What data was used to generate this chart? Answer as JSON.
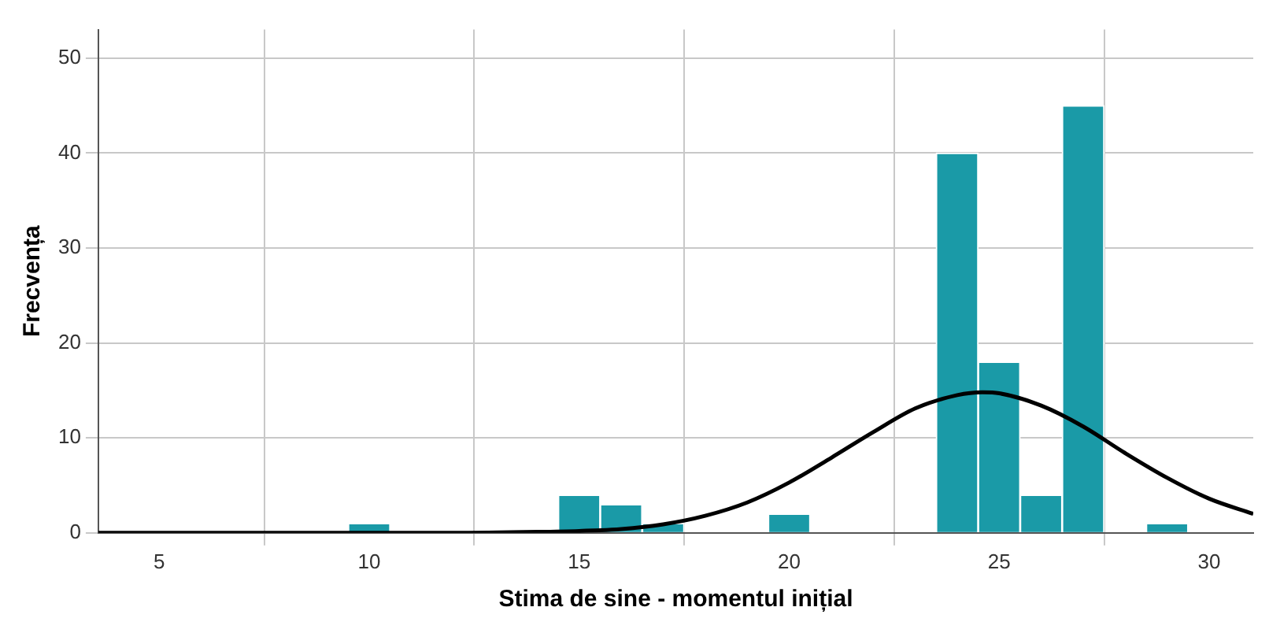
{
  "chart_data": {
    "type": "histogram",
    "xlabel": "Stima de sine - momentul inițial",
    "ylabel": "Frecvența",
    "bins": [
      9.5,
      10.5,
      11.5,
      12.5,
      13.5,
      14.5,
      15.5,
      16.5,
      17.5,
      18.5,
      19.5,
      20.5,
      21.5,
      22.5,
      23.5,
      24.5,
      25.5,
      26.5,
      27.5,
      28.5,
      29.5
    ],
    "series": [
      {
        "color": "#1a9aa7",
        "values": [
          1,
          0,
          0,
          0,
          0,
          4,
          3,
          1,
          0,
          0,
          2,
          0,
          0,
          0,
          40,
          18,
          4,
          45,
          0,
          1
        ]
      },
      {
        "type": "line",
        "color": "#000000",
        "x": [
          3.55,
          8,
          12,
          14,
          15,
          16,
          17,
          18,
          19,
          20,
          21,
          22,
          23,
          24,
          24.6,
          25,
          26,
          27,
          28,
          29,
          30,
          31.05
        ],
        "values": [
          0,
          0,
          0,
          0.1,
          0.2,
          0.4,
          0.9,
          1.8,
          3.2,
          5.3,
          7.9,
          10.6,
          13.1,
          14.5,
          14.8,
          14.7,
          13.4,
          11.2,
          8.4,
          5.8,
          3.6,
          2
        ]
      }
    ],
    "xlim": [
      3.55,
      31.05
    ],
    "ylim": [
      0,
      53
    ],
    "xticks": [
      5,
      10,
      15,
      20,
      25,
      30
    ],
    "yticks": [
      0,
      10,
      20,
      30,
      40,
      50
    ],
    "grid": true
  }
}
